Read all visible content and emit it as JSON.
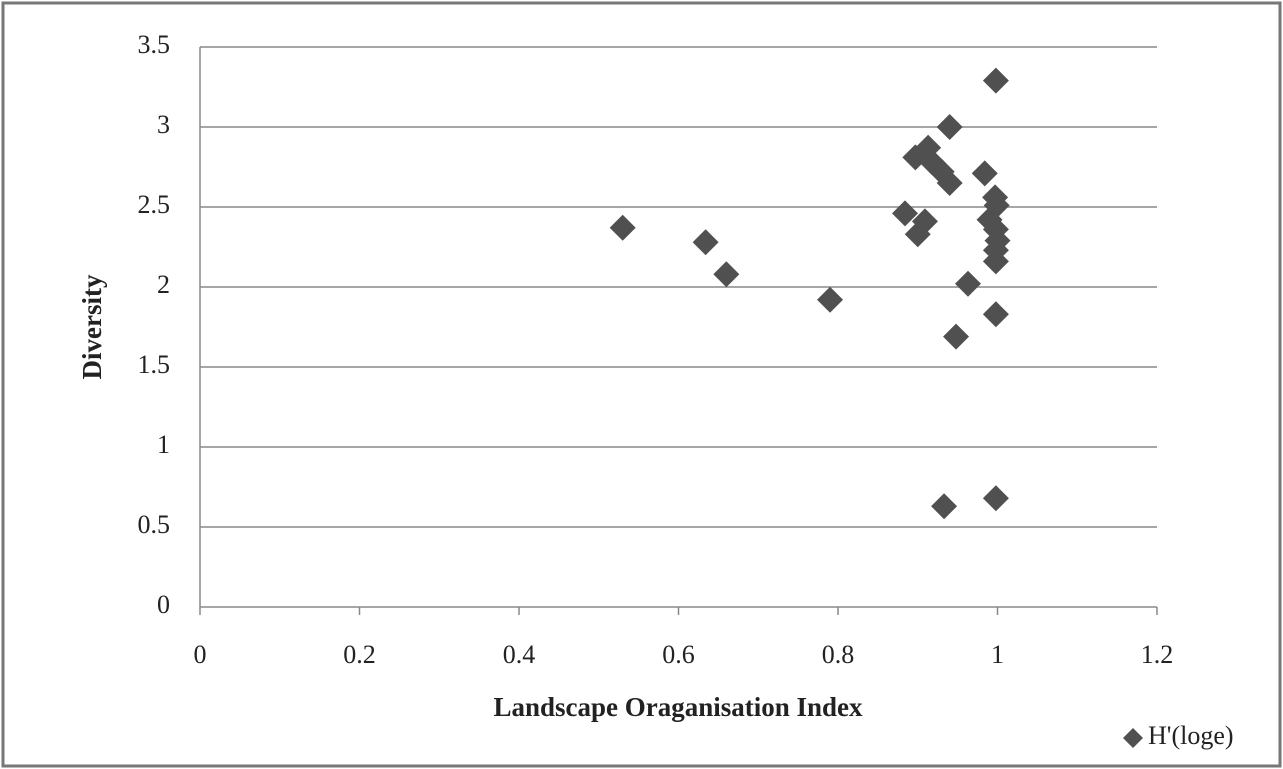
{
  "chart_data": {
    "type": "scatter",
    "x_label": "Landscape Oraganisation Index",
    "y_label": "Diversity",
    "series": [
      {
        "name": "H'(loge)",
        "color": "#505050",
        "x": [
          0.53,
          0.634,
          0.66,
          0.79,
          0.884,
          0.897,
          0.913,
          0.918,
          0.93,
          0.94,
          0.94,
          0.909,
          0.9,
          0.984,
          0.997,
          0.999,
          0.99,
          0.998,
          1.0,
          0.998,
          0.998,
          0.963,
          0.998,
          0.948,
          0.998,
          0.933,
          0.998
        ],
        "values": [
          2.37,
          2.28,
          2.08,
          1.92,
          2.46,
          2.81,
          2.87,
          2.78,
          2.72,
          2.65,
          3.0,
          2.41,
          2.33,
          2.71,
          2.56,
          2.51,
          2.42,
          2.36,
          2.29,
          2.23,
          2.16,
          2.02,
          1.83,
          1.69,
          3.29,
          0.63,
          0.68
        ]
      }
    ],
    "xlim": [
      0,
      1.2
    ],
    "xticks": [
      0,
      0.2,
      0.4,
      0.6,
      0.8,
      1,
      1.2
    ],
    "ylim": [
      0,
      3.5
    ],
    "yticks": [
      0,
      0.5,
      1,
      1.5,
      2,
      2.5,
      3,
      3.5
    ],
    "grid": true,
    "legend": "bottom-right"
  }
}
